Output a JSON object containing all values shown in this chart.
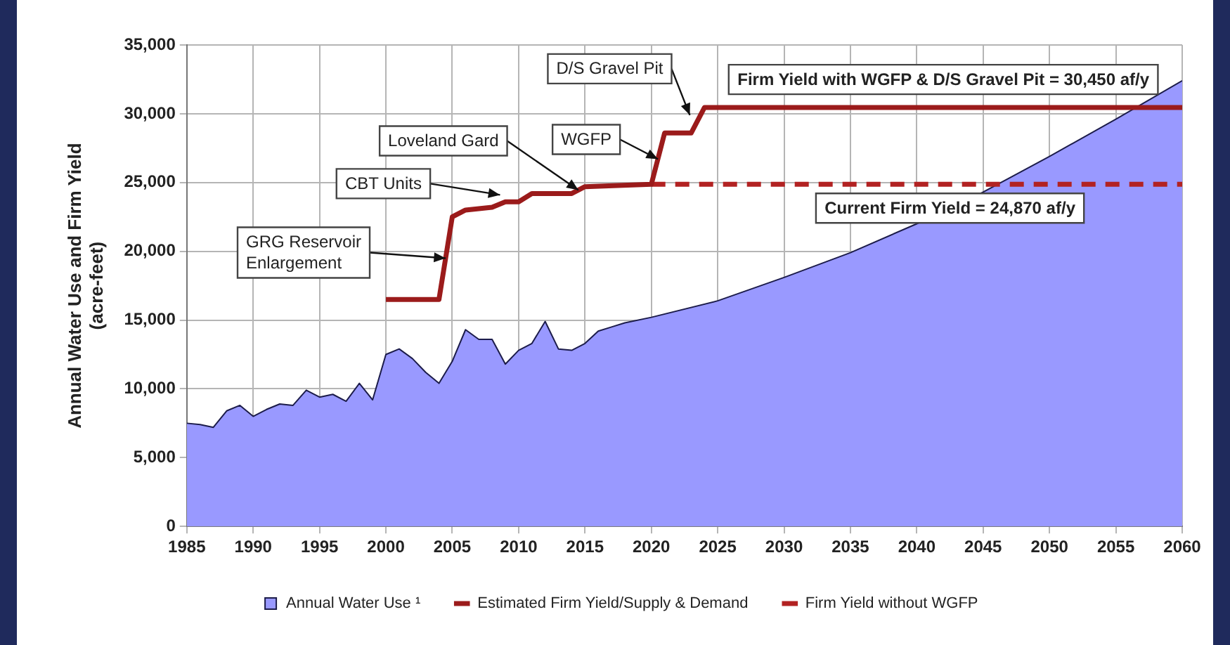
{
  "chart_data": {
    "type": "area",
    "ylabel": "Annual Water Use and Firm Yield\n(acre-feet)",
    "xlim": [
      1985,
      2060
    ],
    "xticks": [
      1985,
      1990,
      1995,
      2000,
      2005,
      2010,
      2015,
      2020,
      2025,
      2030,
      2035,
      2040,
      2045,
      2050,
      2055,
      2060
    ],
    "ylim": [
      0,
      35000
    ],
    "yticks": [
      0,
      {
        "value": 5000,
        "label": "5,000"
      },
      {
        "value": 10000,
        "label": "10,000"
      },
      {
        "value": 15000,
        "label": "15,000"
      },
      {
        "value": 20000,
        "label": "20,000"
      },
      {
        "value": 25000,
        "label": "25,000"
      },
      {
        "value": 30000,
        "label": "30,000"
      },
      {
        "value": 35000,
        "label": "35,000"
      }
    ],
    "grid": true,
    "legend": "bottom",
    "series": [
      {
        "name": "Annual Water Use ¹",
        "color": "#9999ff",
        "x": [
          1985,
          1986,
          1987,
          1988,
          1989,
          1990,
          1991,
          1992,
          1993,
          1994,
          1995,
          1996,
          1997,
          1998,
          1999,
          2000,
          2001,
          2002,
          2003,
          2004,
          2005,
          2006,
          2007,
          2008,
          2009,
          2010,
          2011,
          2012,
          2013,
          2014,
          2015,
          2016,
          2017,
          2018,
          2020,
          2025,
          2030,
          2035,
          2040,
          2045,
          2050,
          2055,
          2060
        ],
        "values": [
          7500,
          7400,
          7200,
          8400,
          8800,
          8000,
          8500,
          8900,
          8800,
          9900,
          9400,
          9600,
          9100,
          10400,
          9200,
          12500,
          12900,
          12200,
          11200,
          10400,
          12000,
          14300,
          13600,
          13600,
          11800,
          12800,
          13300,
          14900,
          12900,
          12800,
          13300,
          14200,
          14500,
          14800,
          15200,
          16400,
          18100,
          19900,
          22000,
          24300,
          26900,
          29600,
          32400
        ]
      },
      {
        "name": "Estimated Firm Yield/Supply & Demand",
        "type": "line",
        "color": "#9b1b1b",
        "line_style": "solid",
        "x": [
          2000,
          2004,
          2005,
          2006,
          2008,
          2009,
          2010,
          2011,
          2014,
          2015,
          2020,
          2021,
          2023,
          2024,
          2060
        ],
        "values": [
          16500,
          16500,
          22500,
          23000,
          23200,
          23600,
          23600,
          24200,
          24200,
          24700,
          24870,
          28600,
          28600,
          30450,
          30450
        ]
      },
      {
        "name": "Firm Yield without WGFP",
        "type": "line",
        "color": "#b22222",
        "line_style": "dashed",
        "x": [
          2020,
          2060
        ],
        "values": [
          24870,
          24870
        ]
      }
    ],
    "annotations": [
      {
        "text": "GRG Reservoir\nEnlargement",
        "x": 2004.5,
        "y": 19500
      },
      {
        "text": "CBT Units",
        "x": 2008.6,
        "y": 24100
      },
      {
        "text": "Loveland Gard",
        "x": 2014.5,
        "y": 24450
      },
      {
        "text": "WGFP",
        "x": 2020.5,
        "y": 26700
      },
      {
        "text": "D/S Gravel Pit",
        "x": 2022.9,
        "y": 29900
      },
      {
        "text": "Firm Yield with WGFP & D/S Gravel Pit = 30,450 af/y",
        "x": 2042,
        "y": 30450
      },
      {
        "text": "Current Firm Yield = 24,870 af/y",
        "x": 2042.5,
        "y": 24870
      }
    ]
  }
}
